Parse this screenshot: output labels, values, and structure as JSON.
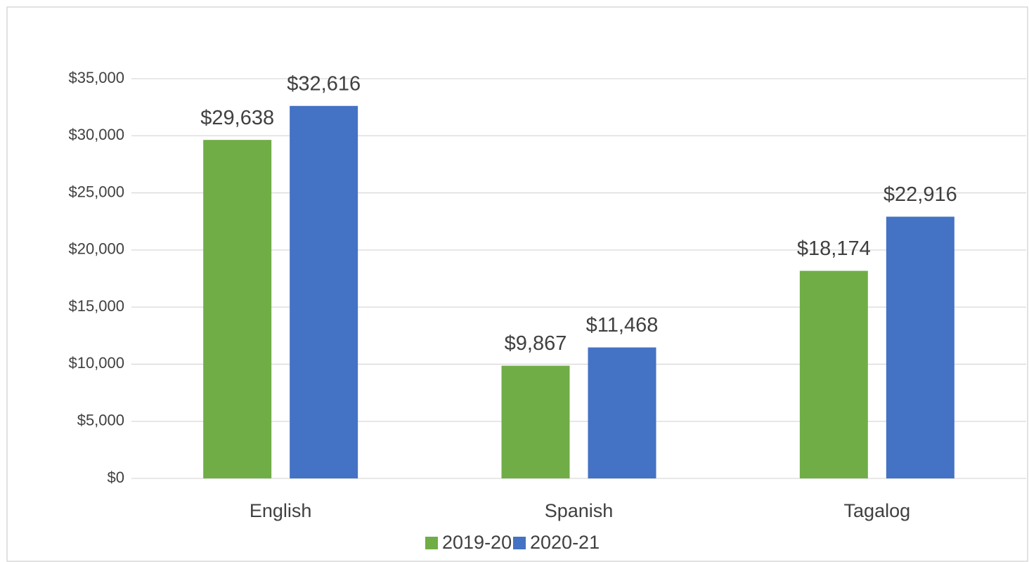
{
  "chart_data": {
    "type": "bar",
    "categories": [
      "English",
      "Spanish",
      "Tagalog"
    ],
    "series": [
      {
        "name": "2019-20",
        "color": "#70ad47",
        "values": [
          29638,
          9867,
          18174
        ],
        "value_labels": [
          "$29,638",
          "$9,867",
          "$18,174"
        ]
      },
      {
        "name": "2020-21",
        "color": "#4472c4",
        "values": [
          32616,
          11468,
          22916
        ],
        "value_labels": [
          "$32,616",
          "$11,468",
          "$22,916"
        ]
      }
    ],
    "ylim": [
      0,
      35000
    ],
    "yticks": [
      {
        "value": 0,
        "label": "$0"
      },
      {
        "value": 5000,
        "label": "$5,000"
      },
      {
        "value": 10000,
        "label": "$10,000"
      },
      {
        "value": 15000,
        "label": "$15,000"
      },
      {
        "value": 20000,
        "label": "$20,000"
      },
      {
        "value": 25000,
        "label": "$25,000"
      },
      {
        "value": 30000,
        "label": "$30,000"
      },
      {
        "value": 35000,
        "label": "$35,000"
      }
    ],
    "grid": true,
    "legend": "bottom"
  }
}
